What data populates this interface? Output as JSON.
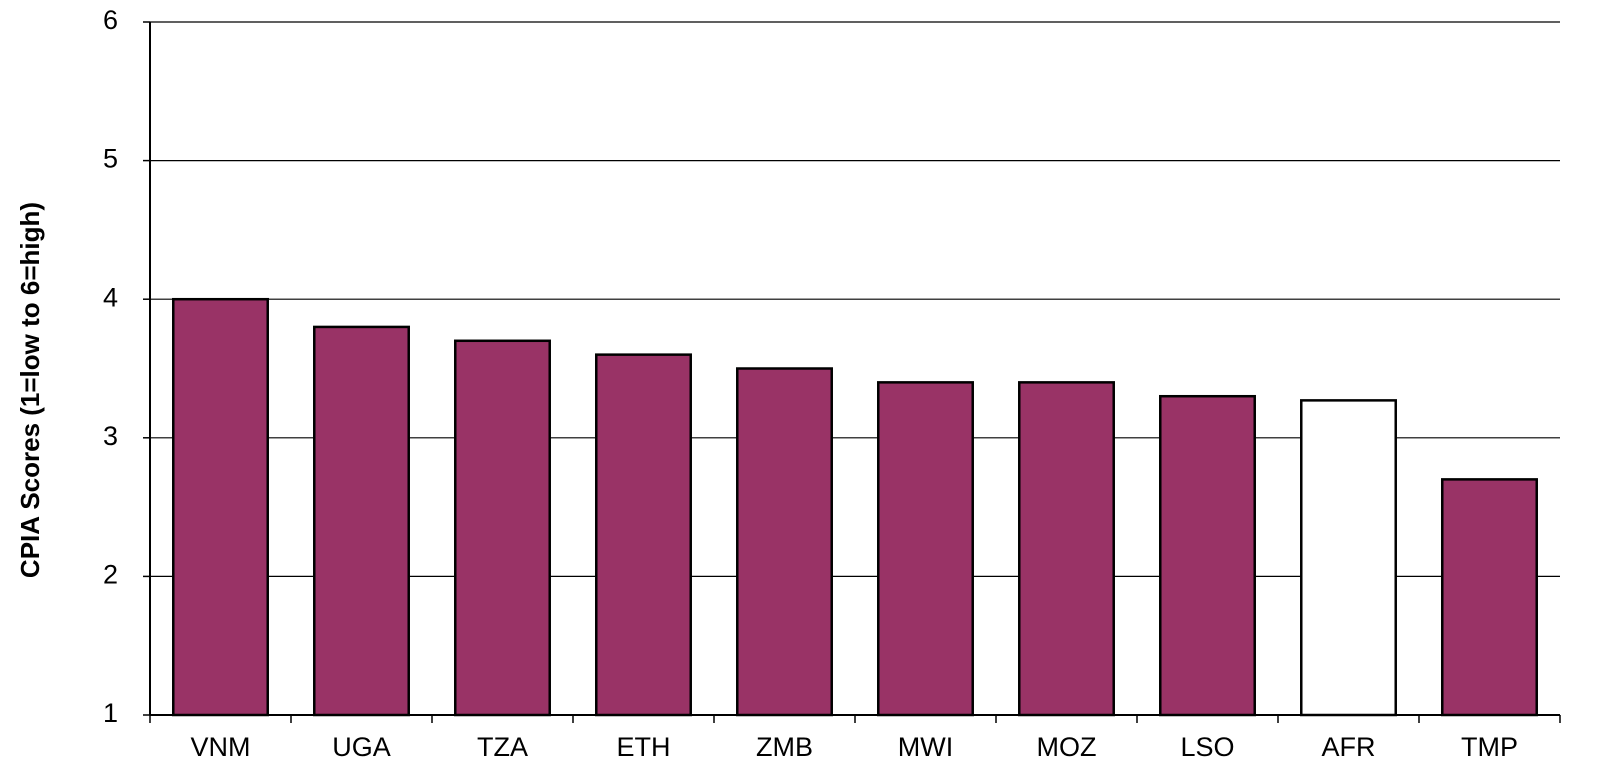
{
  "chart_data": {
    "type": "bar",
    "y_label": "CPIA Scores (1=low to 6=high)",
    "categories": [
      "VNM",
      "UGA",
      "TZA",
      "ETH",
      "ZMB",
      "MWI",
      "MOZ",
      "LSO",
      "AFR",
      "TMP"
    ],
    "values": [
      4.0,
      3.8,
      3.7,
      3.6,
      3.5,
      3.4,
      3.4,
      3.3,
      3.27,
      2.7
    ],
    "colors": [
      "#993366",
      "#993366",
      "#993366",
      "#993366",
      "#993366",
      "#993366",
      "#993366",
      "#993366",
      "#ffffff",
      "#993366"
    ],
    "ylim": [
      1,
      6
    ],
    "yticks": [
      1,
      2,
      3,
      4,
      5,
      6
    ],
    "grid": true
  }
}
